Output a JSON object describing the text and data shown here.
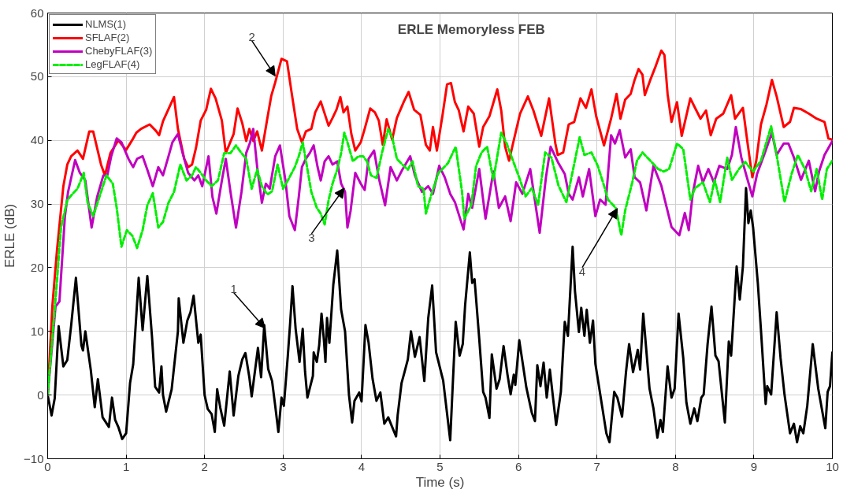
{
  "chart_data": {
    "type": "line",
    "title": "ERLE Memoryless FEB",
    "xlabel": "Time (s)",
    "ylabel": "ERLE (dB)",
    "xlim": [
      0,
      10
    ],
    "ylim": [
      -10,
      60
    ],
    "xticks": [
      0,
      1,
      2,
      3,
      4,
      5,
      6,
      7,
      8,
      9,
      10
    ],
    "yticks": [
      -10,
      0,
      10,
      20,
      30,
      40,
      50,
      60
    ],
    "grid": true,
    "legend": "top left",
    "marker": "none",
    "annotations": [
      {
        "text": "1",
        "x": 2.77,
        "y": 10.5
      },
      {
        "text": "2",
        "x": 2.9,
        "y": 50.1
      },
      {
        "text": "3",
        "x": 3.78,
        "y": 32.5
      },
      {
        "text": "4",
        "x": 7.26,
        "y": 29.3
      }
    ],
    "series": [
      {
        "name": "NLMS(1)",
        "color": "#000000",
        "line_style": "solid",
        "x": [
          0,
          0.05,
          0.09,
          0.14,
          0.2,
          0.25,
          0.3,
          0.36,
          0.43,
          0.45,
          0.48,
          0.55,
          0.6,
          0.64,
          0.7,
          0.78,
          0.82,
          0.86,
          0.9,
          0.95,
          1.0,
          1.05,
          1.09,
          1.16,
          1.21,
          1.27,
          1.33,
          1.37,
          1.42,
          1.45,
          1.47,
          1.51,
          1.58,
          1.66,
          1.67,
          1.73,
          1.78,
          1.82,
          1.86,
          1.92,
          1.95,
          2.0,
          2.04,
          2.09,
          2.13,
          2.16,
          2.2,
          2.25,
          2.32,
          2.37,
          2.43,
          2.48,
          2.52,
          2.57,
          2.6,
          2.68,
          2.72,
          2.76,
          2.81,
          2.86,
          2.9,
          2.94,
          2.98,
          3.01,
          3.06,
          3.09,
          3.12,
          3.16,
          3.21,
          3.25,
          3.28,
          3.31,
          3.38,
          3.39,
          3.43,
          3.46,
          3.49,
          3.52,
          3.54,
          3.56,
          3.59,
          3.64,
          3.69,
          3.74,
          3.79,
          3.84,
          3.88,
          3.91,
          3.97,
          4.0,
          4.05,
          4.09,
          4.14,
          4.19,
          4.24,
          4.29,
          4.34,
          4.39,
          4.44,
          4.46,
          4.51,
          4.55,
          4.59,
          4.63,
          4.68,
          4.74,
          4.8,
          4.85,
          4.9,
          4.95,
          5.04,
          5.13,
          5.16,
          5.2,
          5.25,
          5.29,
          5.32,
          5.38,
          5.41,
          5.44,
          5.5,
          5.55,
          5.58,
          5.63,
          5.66,
          5.72,
          5.76,
          5.81,
          5.86,
          5.9,
          5.94,
          5.96,
          6.01,
          6.06,
          6.1,
          6.17,
          6.21,
          6.24,
          6.28,
          6.32,
          6.36,
          6.4,
          6.44,
          6.48,
          6.54,
          6.59,
          6.63,
          6.69,
          6.72,
          6.77,
          6.8,
          6.84,
          6.87,
          6.91,
          6.95,
          6.98,
          7.02,
          7.07,
          7.12,
          7.16,
          7.22,
          7.26,
          7.32,
          7.37,
          7.41,
          7.46,
          7.52,
          7.55,
          7.59,
          7.67,
          7.72,
          7.77,
          7.81,
          7.84,
          7.9,
          7.95,
          7.99,
          8.04,
          8.1,
          8.14,
          8.19,
          8.24,
          8.28,
          8.33,
          8.36,
          8.41,
          8.46,
          8.51,
          8.55,
          8.63,
          8.68,
          8.71,
          8.78,
          8.82,
          8.86,
          8.9,
          8.93,
          8.96,
          8.99,
          9.05,
          9.09,
          9.15,
          9.17,
          9.22,
          9.29,
          9.34,
          9.39,
          9.46,
          9.51,
          9.55,
          9.59,
          9.63,
          9.68,
          9.75,
          9.82,
          9.91,
          9.94,
          9.97,
          10
        ],
        "values": [
          0,
          -3.2,
          -0.5,
          10.8,
          4.5,
          5.5,
          11,
          18.4,
          7.8,
          7,
          10,
          3.9,
          -1.9,
          2.5,
          -3.5,
          -5,
          -0.4,
          -3.9,
          -5,
          -6.9,
          -6,
          1.9,
          4.8,
          18.4,
          10.2,
          18.7,
          9.1,
          1.3,
          0.4,
          4.5,
          0,
          -2.6,
          0.9,
          10,
          15.2,
          8.2,
          11.7,
          13,
          15.6,
          8.2,
          9.5,
          0,
          -2.2,
          -3,
          -5.8,
          0.9,
          -2,
          -4.8,
          3.7,
          -3.2,
          3,
          5.6,
          6.6,
          2.8,
          -0.2,
          7.4,
          2.8,
          11,
          4.1,
          2.2,
          -1.7,
          -5.8,
          -0.4,
          -1.7,
          6.1,
          11.3,
          17.1,
          10.4,
          5.2,
          10.4,
          3.7,
          -0.4,
          3,
          6.7,
          5.2,
          7.8,
          12.8,
          8.7,
          5.2,
          12.1,
          8.2,
          17.3,
          22.7,
          13.4,
          10,
          0,
          -4.3,
          -0.9,
          0.4,
          -1,
          11,
          8.2,
          2.6,
          -0.9,
          0.4,
          -4.5,
          -3.5,
          -5,
          -6.5,
          -3.2,
          1.9,
          3.7,
          5.6,
          10,
          6,
          9.1,
          2.2,
          12.1,
          17.2,
          6.7,
          2.3,
          -7.1,
          1,
          11.5,
          6.2,
          8,
          14.1,
          22.4,
          17.6,
          18.2,
          8.8,
          0.5,
          -0.4,
          -3.6,
          6.4,
          1,
          2.5,
          7.7,
          3.2,
          0.1,
          3.2,
          1.6,
          8.6,
          4.5,
          1.2,
          -2.8,
          -4.1,
          4.7,
          1.4,
          5.1,
          -0.4,
          4,
          -0.4,
          -4.7,
          0.5,
          11.5,
          9.3,
          23.3,
          16.3,
          9.9,
          13.7,
          9.3,
          13.4,
          8.2,
          11.7,
          4.9,
          1.8,
          -2.1,
          -6,
          -7.4,
          0.5,
          -0.4,
          -3.4,
          3.6,
          8,
          3.6,
          7.1,
          4,
          12.8,
          1,
          -2.1,
          -6.7,
          -3.9,
          -5.8,
          4.5,
          -0.4,
          1,
          12.8,
          5.8,
          -1.2,
          -4.5,
          -2.1,
          -4.1,
          -0.4,
          0.1,
          8,
          13.9,
          6.2,
          5.3,
          -4.3,
          8.4,
          6.2,
          20.2,
          15,
          20.2,
          32.5,
          27,
          29,
          26.3,
          17.6,
          10.2,
          -1.4,
          1.4,
          0.1,
          13,
          5.8,
          0.1,
          -6,
          -4.5,
          -7.4,
          -4.9,
          -6,
          -1.7,
          8,
          1,
          -5.2,
          0.5,
          1.4,
          6.7
        ]
      },
      {
        "name": "SFLAF(2)",
        "color": "#ff0000",
        "line_style": "solid",
        "x": [
          0,
          0.06,
          0.12,
          0.2,
          0.25,
          0.3,
          0.38,
          0.45,
          0.53,
          0.58,
          0.68,
          0.73,
          0.8,
          0.9,
          1.0,
          1.08,
          1.13,
          1.19,
          1.3,
          1.38,
          1.42,
          1.47,
          1.61,
          1.66,
          1.74,
          1.79,
          1.84,
          1.89,
          1.95,
          2.02,
          2.08,
          2.14,
          2.22,
          2.27,
          2.37,
          2.42,
          2.48,
          2.53,
          2.57,
          2.62,
          2.67,
          2.73,
          2.8,
          2.85,
          2.9,
          2.98,
          3.05,
          3.11,
          3.18,
          3.24,
          3.29,
          3.36,
          3.41,
          3.48,
          3.58,
          3.63,
          3.68,
          3.73,
          3.77,
          3.82,
          3.87,
          3.92,
          3.99,
          4.04,
          4.11,
          4.17,
          4.22,
          4.27,
          4.32,
          4.39,
          4.45,
          4.54,
          4.6,
          4.67,
          4.75,
          4.82,
          4.87,
          4.91,
          4.96,
          5.03,
          5.09,
          5.14,
          5.19,
          5.24,
          5.3,
          5.36,
          5.43,
          5.5,
          5.55,
          5.63,
          5.73,
          5.78,
          5.83,
          5.88,
          5.93,
          6.02,
          6.12,
          6.19,
          6.29,
          6.39,
          6.47,
          6.5,
          6.57,
          6.64,
          6.71,
          6.79,
          6.86,
          6.93,
          6.99,
          7.09,
          7.18,
          7.25,
          7.3,
          7.36,
          7.43,
          7.48,
          7.53,
          7.58,
          7.61,
          7.68,
          7.75,
          7.82,
          7.86,
          7.9,
          7.95,
          8.02,
          8.08,
          8.19,
          8.25,
          8.32,
          8.39,
          8.45,
          8.52,
          8.61,
          8.71,
          8.76,
          8.86,
          8.92,
          8.98,
          9.03,
          9.09,
          9.16,
          9.23,
          9.29,
          9.38,
          9.46,
          9.51,
          9.6,
          9.7,
          9.8,
          9.9,
          9.95,
          10
        ],
        "values": [
          0,
          14,
          22.9,
          32.8,
          36.2,
          37.5,
          38.4,
          37.1,
          41.4,
          41.4,
          36.2,
          34.5,
          38,
          40,
          38.5,
          40.1,
          41.2,
          41.8,
          42.5,
          41.5,
          40.8,
          43,
          46.8,
          41.8,
          37.1,
          35.8,
          36.2,
          38.8,
          43.1,
          44.8,
          48.1,
          46.6,
          43.1,
          38,
          41,
          45,
          42.7,
          39.9,
          41.8,
          39.9,
          41.4,
          38.4,
          43.5,
          47,
          49.1,
          52.8,
          52.4,
          47.4,
          41.8,
          39.7,
          41.4,
          41.8,
          44.4,
          46.1,
          42.3,
          43.5,
          44.8,
          46.8,
          44.4,
          45.3,
          41,
          38.4,
          39.7,
          41.8,
          45,
          44.4,
          43.1,
          39.3,
          43.3,
          40.1,
          43.5,
          46.1,
          47.6,
          44.8,
          44,
          39.3,
          38.4,
          42.1,
          38.4,
          43.8,
          48.8,
          49,
          46,
          44.7,
          41.4,
          45.3,
          44.2,
          39,
          42.1,
          43.8,
          48,
          44.7,
          39,
          36.8,
          39.5,
          44.2,
          46.9,
          44.7,
          40.7,
          46.6,
          39.5,
          37.7,
          38.1,
          42.5,
          42.9,
          46.6,
          45.1,
          48,
          43.8,
          39.2,
          43.4,
          47.3,
          43.4,
          46.4,
          47.3,
          49.5,
          51.2,
          50.3,
          47.1,
          49.5,
          51.7,
          54.1,
          53.4,
          47.3,
          42.9,
          46,
          40.7,
          46.6,
          45.1,
          43.4,
          44.7,
          40.8,
          43.4,
          44.2,
          47.1,
          43.4,
          45.1,
          39.5,
          34.2,
          36.8,
          42.5,
          45.6,
          49.5,
          46.9,
          42.1,
          42.9,
          45.1,
          44.9,
          44.2,
          43.4,
          42.9,
          40.3,
          40.1
        ]
      },
      {
        "name": "ChebyFLAF(3)",
        "color": "#c000c0",
        "line_style": "solid",
        "x": [
          0,
          0.1,
          0.15,
          0.22,
          0.26,
          0.35,
          0.41,
          0.48,
          0.56,
          0.63,
          0.71,
          0.76,
          0.81,
          0.88,
          0.94,
          1.03,
          1.09,
          1.14,
          1.21,
          1.27,
          1.34,
          1.41,
          1.47,
          1.54,
          1.59,
          1.66,
          1.72,
          1.79,
          1.87,
          1.92,
          1.97,
          2.05,
          2.1,
          2.15,
          2.22,
          2.27,
          2.33,
          2.4,
          2.47,
          2.53,
          2.58,
          2.62,
          2.67,
          2.73,
          2.78,
          2.83,
          2.9,
          2.96,
          3.03,
          3.08,
          3.15,
          3.2,
          3.24,
          3.29,
          3.34,
          3.39,
          3.44,
          3.48,
          3.53,
          3.58,
          3.63,
          3.69,
          3.74,
          3.79,
          3.82,
          3.86,
          3.92,
          3.99,
          4.04,
          4.09,
          4.16,
          4.22,
          4.3,
          4.37,
          4.45,
          4.52,
          4.62,
          4.68,
          4.77,
          4.85,
          4.91,
          4.99,
          5.06,
          5.13,
          5.19,
          5.3,
          5.36,
          5.41,
          5.5,
          5.58,
          5.68,
          5.75,
          5.83,
          5.9,
          5.97,
          6.05,
          6.15,
          6.27,
          6.35,
          6.41,
          6.51,
          6.59,
          6.64,
          6.69,
          6.77,
          6.82,
          6.9,
          6.98,
          7.04,
          7.11,
          7.18,
          7.23,
          7.29,
          7.36,
          7.43,
          7.48,
          7.55,
          7.63,
          7.72,
          7.82,
          7.95,
          8.05,
          8.12,
          8.17,
          8.22,
          8.29,
          8.35,
          8.42,
          8.49,
          8.56,
          8.66,
          8.72,
          8.77,
          8.84,
          8.92,
          8.98,
          9.04,
          9.13,
          9.23,
          9.29,
          9.38,
          9.44,
          9.51,
          9.6,
          9.7,
          9.78,
          9.83,
          9.9,
          10
        ],
        "values": [
          0,
          13.9,
          14.7,
          28.1,
          31.9,
          36.9,
          34.9,
          33.7,
          26.3,
          31.1,
          34.5,
          34.5,
          37.5,
          40.3,
          39.7,
          37.1,
          35.8,
          37.1,
          37.5,
          35.4,
          32.8,
          35.8,
          34.5,
          37.5,
          39.7,
          41,
          38,
          34.9,
          33.7,
          34.5,
          32.8,
          37.5,
          31.1,
          28.5,
          33.7,
          37.1,
          31.9,
          26.3,
          31.9,
          38,
          39.7,
          41.8,
          35.8,
          30.2,
          33.2,
          32.4,
          37.5,
          39.2,
          33.7,
          28.1,
          25.9,
          31.1,
          35.8,
          37.1,
          38,
          39.2,
          35.8,
          33.7,
          36.7,
          37.5,
          36.2,
          36.7,
          33.2,
          31.9,
          26.3,
          28.9,
          34.9,
          33.2,
          32.2,
          37.1,
          38.4,
          34.1,
          29.8,
          35.8,
          33.7,
          35.4,
          37.5,
          34.5,
          31.9,
          32.8,
          31.6,
          36,
          34.2,
          31.6,
          30.3,
          26,
          31.6,
          29.4,
          35.5,
          27.7,
          35.1,
          29.4,
          31.2,
          27.3,
          33.4,
          31.6,
          35.5,
          25.5,
          34.2,
          39,
          36.4,
          34.7,
          31.6,
          30.7,
          34.2,
          31.2,
          35.5,
          28.1,
          30.7,
          29.9,
          40.8,
          39.5,
          41.6,
          37.3,
          38.6,
          34.2,
          33.4,
          29,
          36,
          32.9,
          26.4,
          25.1,
          28.6,
          25.9,
          31.6,
          36,
          33.4,
          35.5,
          33.4,
          36,
          35.5,
          37.7,
          42.1,
          37.3,
          33.8,
          31.2,
          34.7,
          37.7,
          41.2,
          37.7,
          39.5,
          39.5,
          37.3,
          33.8,
          36.8,
          32,
          35.1,
          37.7,
          39.9
        ]
      },
      {
        "name": "LegFLAF(4)",
        "color": "#00ee00",
        "line_style": "dashed",
        "x": [
          0,
          0.1,
          0.17,
          0.25,
          0.31,
          0.38,
          0.46,
          0.51,
          0.58,
          0.68,
          0.75,
          0.83,
          0.88,
          0.94,
          1.01,
          1.08,
          1.14,
          1.21,
          1.27,
          1.34,
          1.41,
          1.47,
          1.54,
          1.61,
          1.69,
          1.77,
          1.84,
          1.89,
          1.95,
          2.02,
          2.09,
          2.17,
          2.25,
          2.33,
          2.4,
          2.47,
          2.53,
          2.6,
          2.67,
          2.73,
          2.8,
          2.86,
          2.93,
          3.0,
          3.06,
          3.15,
          3.2,
          3.25,
          3.3,
          3.36,
          3.43,
          3.48,
          3.53,
          3.58,
          3.63,
          3.69,
          3.74,
          3.78,
          3.82,
          3.89,
          3.96,
          4.02,
          4.07,
          4.12,
          4.19,
          4.26,
          4.34,
          4.39,
          4.45,
          4.52,
          4.59,
          4.65,
          4.72,
          4.79,
          4.82,
          4.88,
          4.98,
          5.03,
          5.1,
          5.2,
          5.28,
          5.31,
          5.4,
          5.46,
          5.53,
          5.6,
          5.68,
          5.78,
          5.85,
          5.93,
          6.02,
          6.09,
          6.17,
          6.25,
          6.34,
          6.42,
          6.51,
          6.61,
          6.69,
          6.78,
          6.84,
          6.93,
          7.01,
          7.09,
          7.14,
          7.24,
          7.31,
          7.36,
          7.45,
          7.51,
          7.58,
          7.68,
          7.78,
          7.85,
          7.92,
          8.02,
          8.1,
          8.19,
          8.25,
          8.35,
          8.44,
          8.5,
          8.57,
          8.66,
          8.72,
          8.81,
          8.89,
          8.99,
          9.09,
          9.22,
          9.29,
          9.39,
          9.48,
          9.56,
          9.65,
          9.73,
          9.8,
          9.87,
          9.93,
          10
        ],
        "values": [
          0,
          15,
          26.3,
          30.6,
          31.5,
          32.4,
          34.9,
          30.2,
          28.1,
          31.9,
          34.5,
          33.2,
          29.4,
          23.3,
          25.9,
          25,
          23.1,
          25.9,
          29.8,
          31.7,
          26.3,
          27.2,
          30.2,
          31.9,
          36.2,
          33.7,
          34.5,
          35.8,
          34.9,
          33.7,
          32.8,
          33.7,
          38,
          38,
          39.2,
          38,
          37.1,
          32.4,
          35.4,
          32.8,
          31.5,
          32,
          36.2,
          32.4,
          33.7,
          35.8,
          37.5,
          39.7,
          36.2,
          31.9,
          29.4,
          28.5,
          26.8,
          30.6,
          33.2,
          35.4,
          38,
          41.2,
          39.7,
          36.7,
          37.5,
          37.5,
          36.7,
          34.5,
          34.1,
          38,
          41.8,
          40.5,
          37.1,
          36.2,
          35.4,
          36.7,
          32.8,
          32.4,
          28.5,
          31.1,
          34.9,
          35.5,
          36.4,
          39,
          32,
          27.7,
          29.9,
          36,
          38.1,
          39,
          33.8,
          41.2,
          39.5,
          36.8,
          33.8,
          31.2,
          32.5,
          29.9,
          38.1,
          37.3,
          32.9,
          30.3,
          35.1,
          40.5,
          37.7,
          38.1,
          36,
          32.9,
          30.7,
          29.4,
          25.1,
          29,
          33.4,
          36.8,
          38.1,
          36.8,
          35.5,
          35.1,
          35.5,
          39.5,
          38.6,
          30.7,
          32.5,
          33.4,
          30.3,
          33.8,
          30.3,
          37.3,
          33.8,
          35.5,
          36.6,
          35.1,
          36.8,
          42.2,
          37.7,
          30.3,
          34.7,
          37.7,
          35.5,
          32,
          35.5,
          30.7,
          35.5,
          36.8
        ]
      }
    ]
  }
}
